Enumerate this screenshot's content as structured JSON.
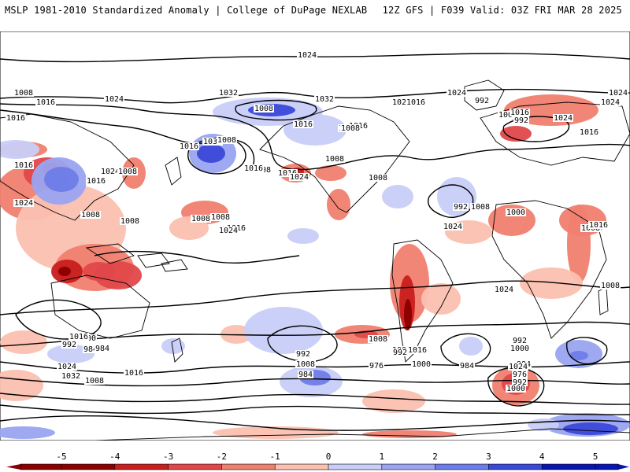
{
  "header": {
    "title_left": "MSLP 1981-2010 Standardized Anomaly | College of DuPage NEXLAB",
    "title_right": "12Z GFS | F039 Valid: 03Z FRI MAR 28 2025"
  },
  "colors": {
    "neg5": "#8b0000",
    "neg4": "#c81e1e",
    "neg3": "#e0474a",
    "neg2": "#f08070",
    "neg1": "#fbc0b0",
    "pos1": "#c8cdf8",
    "pos2": "#9aa4f0",
    "pos3": "#6e7ce8",
    "pos4": "#3a48d8",
    "pos5": "#0a14b0",
    "coast": "#000000",
    "contour": "#000000"
  },
  "map": {
    "projection": "global equirectangular, centered on the Pacific",
    "isobar_labels": [
      "1024",
      "1008",
      "1016",
      "1024",
      "1032",
      "1032",
      "1008",
      "1032",
      "1016",
      "1024",
      "1024",
      "1016",
      "1016",
      "1008",
      "992",
      "1000",
      "992",
      "1016",
      "1024",
      "1016",
      "1024",
      "1024",
      "1016",
      "1016",
      "1024",
      "1008",
      "1016",
      "1024",
      "1008",
      "1008",
      "1008",
      "1008",
      "1008",
      "1016",
      "1016",
      "1008",
      "1016",
      "1024",
      "1008",
      "1008",
      "1016",
      "1024",
      "1016",
      "1008",
      "992",
      "1000",
      "1008",
      "1016",
      "1024",
      "1024",
      "1008",
      "1000",
      "992",
      "984",
      "984",
      "1008",
      "1000",
      "992",
      "1016",
      "1000",
      "984",
      "992",
      "1000",
      "984",
      "992",
      "1008",
      "984",
      "976",
      "1024",
      "976",
      "992",
      "1000",
      "1016",
      "1024",
      "1032",
      "1008",
      "1016"
    ]
  },
  "colorbar": {
    "ticks": [
      "-5",
      "-4",
      "-3",
      "-2",
      "-1",
      "0",
      "1",
      "2",
      "3",
      "4",
      "5"
    ]
  }
}
